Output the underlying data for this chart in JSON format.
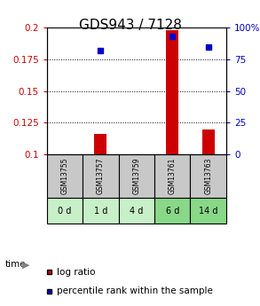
{
  "title": "GDS943 / 7128",
  "samples": [
    "GSM13755",
    "GSM13757",
    "GSM13759",
    "GSM13761",
    "GSM13763"
  ],
  "time_labels": [
    "0 d",
    "1 d",
    "4 d",
    "6 d",
    "14 d"
  ],
  "log_ratio": [
    null,
    0.116,
    null,
    0.198,
    0.12
  ],
  "percentile_rank": [
    null,
    82,
    null,
    93,
    85
  ],
  "ylim_left": [
    0.1,
    0.2
  ],
  "ylim_right": [
    0,
    100
  ],
  "yticks_left": [
    0.1,
    0.125,
    0.15,
    0.175,
    0.2
  ],
  "yticks_right": [
    0,
    25,
    50,
    75,
    100
  ],
  "bar_color": "#cc0000",
  "dot_color": "#0000cc",
  "grid_color": "#000000",
  "sample_bg": "#c8c8c8",
  "time_bg_light": "#c8f0c8",
  "time_bg_dark": "#88d888",
  "title_fontsize": 11,
  "tick_fontsize": 7.5,
  "label_fontsize": 8
}
